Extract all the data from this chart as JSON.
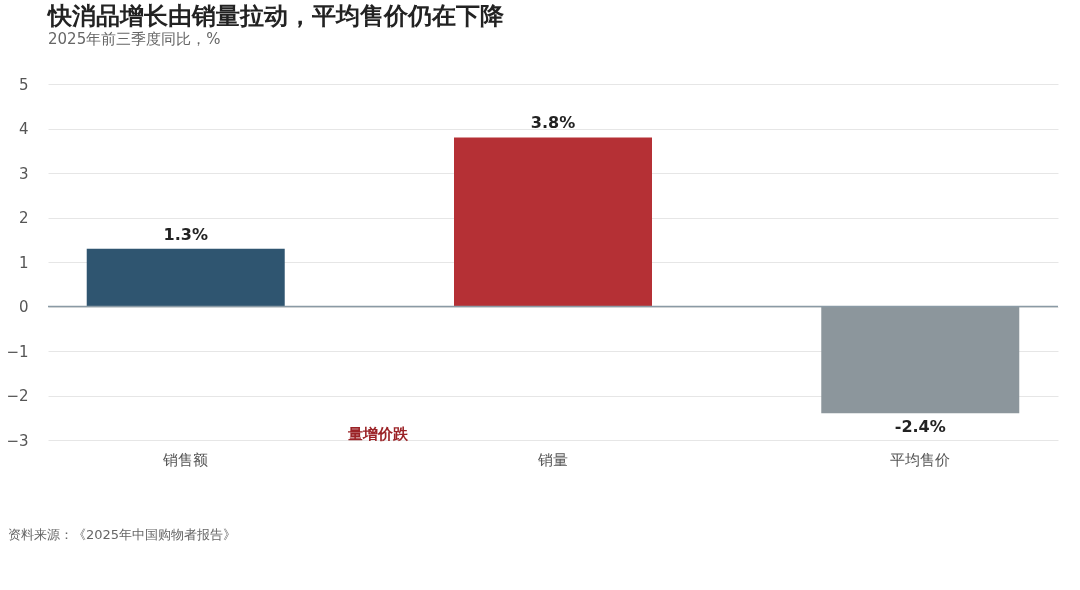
{
  "chart_data": {
    "type": "bar",
    "title": "快消品增长由销量拉动，平均售价仍在下降",
    "subtitle": "2025年前三季度同比，%",
    "categories": [
      "销售额",
      "销量",
      "平均售价"
    ],
    "values": [
      1.3,
      3.8,
      -2.4
    ],
    "colors": [
      "#2f5570",
      "#b53035",
      "#8c969c"
    ],
    "value_labels": [
      "1.3%",
      "3.8%",
      "-2.4%"
    ],
    "ylim": [
      -3,
      5
    ],
    "yticks": [
      -3,
      -2,
      -1,
      0,
      1,
      2,
      3,
      4,
      5
    ],
    "grid": "y",
    "annotations": [
      "量增价跌",
      "资料来源：《2025年中国购物者报告》"
    ]
  }
}
